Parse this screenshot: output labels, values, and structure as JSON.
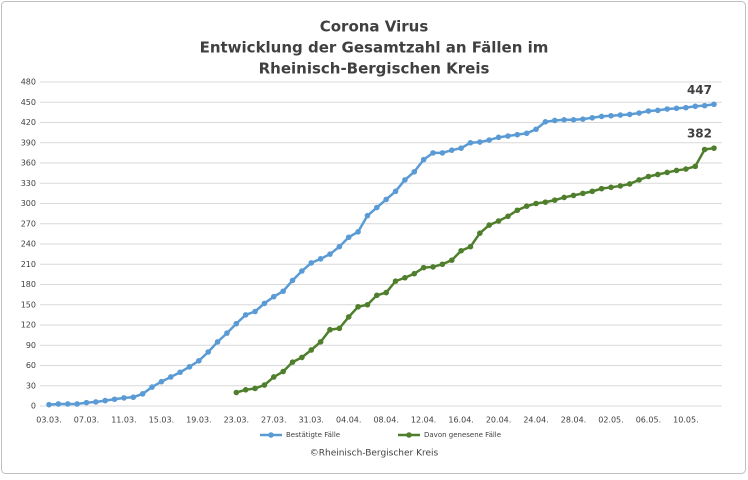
{
  "chart_data": {
    "type": "line",
    "title": [
      "Corona Virus",
      "Entwicklung der Gesamtzahl an Fällen im",
      "Rheinisch-Bergischen Kreis"
    ],
    "source": "©Rheinisch-Bergischer Kreis",
    "categories": [
      "03.03.",
      null,
      null,
      null,
      "07.03.",
      null,
      null,
      null,
      "11.03.",
      null,
      null,
      null,
      "15.03.",
      null,
      null,
      null,
      "19.03.",
      null,
      null,
      null,
      "23.03.",
      null,
      null,
      null,
      "27.03.",
      null,
      null,
      null,
      "31.03.",
      null,
      null,
      null,
      "04.04.",
      null,
      null,
      null,
      "08.04.",
      null,
      null,
      null,
      "12.04.",
      null,
      null,
      null,
      "16.04.",
      null,
      null,
      null,
      "20.04.",
      null,
      null,
      null,
      "24.04.",
      null,
      null,
      null,
      "28.04.",
      null,
      null,
      null,
      "02.05.",
      null,
      null,
      null,
      "06.05.",
      null,
      null,
      null,
      "10.05.",
      null,
      null,
      null
    ],
    "series": [
      {
        "name": "Bestätigte Fälle",
        "color": "#5b9bd5",
        "values": [
          2,
          3,
          3,
          3,
          5,
          6,
          8,
          10,
          12,
          13,
          18,
          28,
          36,
          43,
          50,
          58,
          67,
          80,
          95,
          108,
          122,
          135,
          140,
          152,
          162,
          170,
          186,
          200,
          212,
          218,
          225,
          236,
          250,
          258,
          282,
          294,
          306,
          318,
          335,
          347,
          365,
          375,
          375,
          379,
          382,
          390,
          391,
          394,
          398,
          400,
          402,
          404,
          410,
          421,
          423,
          424,
          424,
          425,
          427,
          429,
          430,
          431,
          432,
          434,
          437,
          438,
          440,
          441,
          442,
          444,
          445,
          447
        ]
      },
      {
        "name": "Davon genesene Fälle",
        "color": "#4f7f2c",
        "values": [
          null,
          null,
          null,
          null,
          null,
          null,
          null,
          null,
          null,
          null,
          null,
          null,
          null,
          null,
          null,
          null,
          null,
          null,
          null,
          null,
          20,
          24,
          26,
          31,
          43,
          51,
          65,
          72,
          83,
          95,
          113,
          115,
          132,
          147,
          150,
          164,
          168,
          185,
          190,
          196,
          205,
          206,
          210,
          216,
          230,
          236,
          256,
          268,
          274,
          281,
          290,
          296,
          300,
          302,
          305,
          309,
          312,
          315,
          318,
          322,
          324,
          326,
          329,
          335,
          340,
          343,
          346,
          349,
          351,
          355,
          380,
          382
        ]
      }
    ],
    "ylim": [
      0,
      480
    ],
    "yticks": [
      0,
      30,
      60,
      90,
      120,
      150,
      180,
      210,
      240,
      270,
      300,
      330,
      360,
      390,
      420,
      450,
      480
    ],
    "grid": true,
    "legend": "bottom",
    "end_labels": true
  }
}
